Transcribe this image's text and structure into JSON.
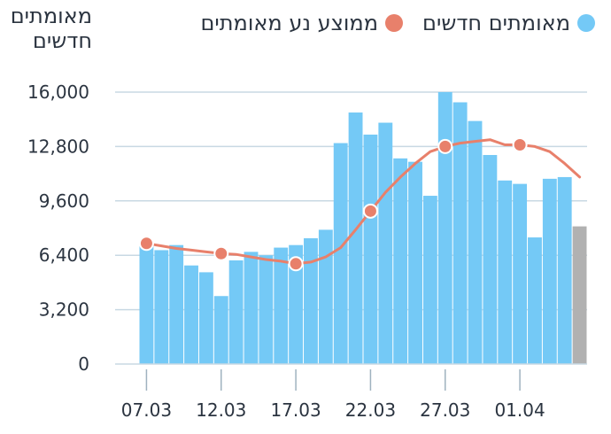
{
  "chart_data": {
    "type": "bar",
    "ylabel_lines": [
      "מאומתים",
      "חדשים"
    ],
    "ylim": [
      0,
      16000
    ],
    "yticks": [
      0,
      3200,
      6400,
      9600,
      12800,
      16000
    ],
    "ytick_labels": [
      "0",
      "3,200",
      "6,400",
      "9,600",
      "12,800",
      "16,000"
    ],
    "xtick_labels": [
      "07.03",
      "12.03",
      "17.03",
      "22.03",
      "27.03",
      "01.04"
    ],
    "xtick_index": [
      0,
      5,
      10,
      15,
      20,
      25
    ],
    "categories": [
      "07.03",
      "08.03",
      "09.03",
      "10.03",
      "11.03",
      "12.03",
      "13.03",
      "14.03",
      "15.03",
      "16.03",
      "17.03",
      "18.03",
      "19.03",
      "20.03",
      "21.03",
      "22.03",
      "23.03",
      "24.03",
      "25.03",
      "26.03",
      "27.03",
      "28.03",
      "29.03",
      "30.03",
      "31.03",
      "01.04",
      "02.04",
      "03.04",
      "04.04",
      "05.04"
    ],
    "grid": true,
    "legend_position": "top",
    "colors": {
      "bars": "#74c9f6",
      "bars_partial": "#b1b1b1",
      "average": "#e8806b",
      "grid": "#c8d9e3"
    },
    "series": [
      {
        "name": "מאומתים חדשים",
        "values": [
          7000,
          6700,
          7000,
          5800,
          5400,
          4000,
          6100,
          6600,
          6400,
          6850,
          7000,
          7400,
          7900,
          13000,
          14800,
          13500,
          14200,
          12100,
          11900,
          9900,
          16000,
          15400,
          14300,
          12300,
          10800,
          10600,
          7450,
          10900,
          11000,
          8100
        ],
        "partial_last": true
      },
      {
        "name": "ממוצע נע מאומתים",
        "type": "line",
        "values": [
          7100,
          6950,
          6800,
          6700,
          6600,
          6500,
          6450,
          6300,
          6150,
          6050,
          5900,
          6000,
          6300,
          6850,
          7900,
          9000,
          10100,
          11000,
          11800,
          12500,
          12800,
          13000,
          13100,
          13200,
          12900,
          12900,
          12800,
          12500,
          11800,
          11000
        ],
        "markers_at": [
          0,
          5,
          10,
          15,
          20,
          25
        ]
      }
    ]
  }
}
